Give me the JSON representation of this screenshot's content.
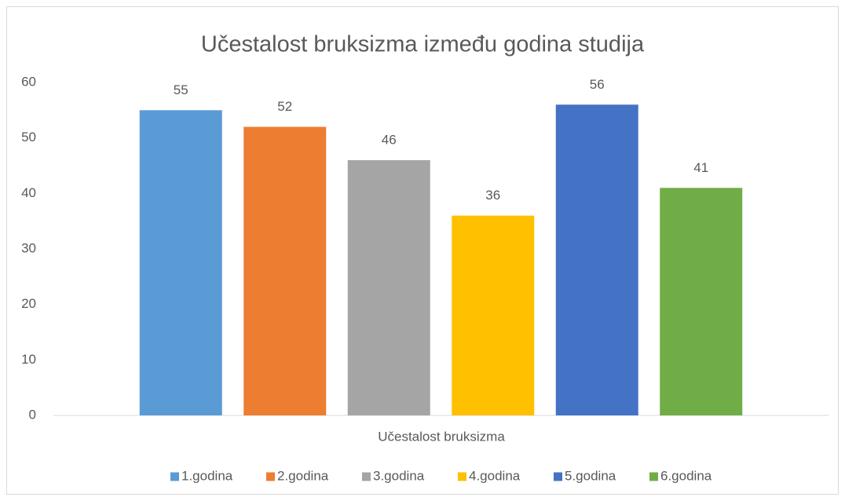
{
  "chart_data": {
    "type": "bar",
    "title": "Učestalost bruksizma između godina studija",
    "x_label": "Učestalost bruksizma",
    "categories": [
      "Učestalost bruksizma"
    ],
    "series": [
      {
        "name": "1.godina",
        "color": "#5b9bd5",
        "values": [
          55
        ]
      },
      {
        "name": "2.godina",
        "color": "#ed7d31",
        "values": [
          52
        ]
      },
      {
        "name": "3.godina",
        "color": "#a5a5a5",
        "values": [
          46
        ]
      },
      {
        "name": "4.godina",
        "color": "#ffc000",
        "values": [
          36
        ]
      },
      {
        "name": "5.godina",
        "color": "#4472c4",
        "values": [
          56
        ]
      },
      {
        "name": "6.godina",
        "color": "#70ad47",
        "values": [
          41
        ]
      }
    ],
    "ylim": [
      0,
      60
    ],
    "yticks": [
      0,
      10,
      20,
      30,
      40,
      50,
      60
    ],
    "grid": false,
    "legend": "bottom"
  }
}
